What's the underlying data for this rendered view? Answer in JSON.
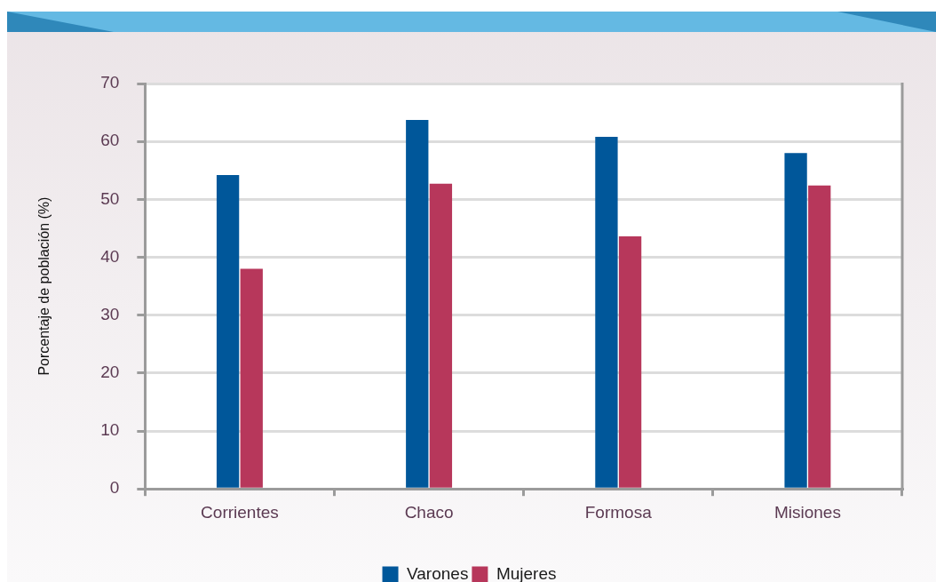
{
  "chart_data": {
    "type": "bar",
    "categories": [
      "Corrientes",
      "Chaco",
      "Formosa",
      "Misiones"
    ],
    "series": [
      {
        "name": "Varones",
        "color": "#00579a",
        "values": [
          54.2,
          63.7,
          60.8,
          58.0
        ]
      },
      {
        "name": "Mujeres",
        "color": "#b7375b",
        "values": [
          38.0,
          52.7,
          43.6,
          52.4
        ]
      }
    ],
    "ylabel": "Porcentaje de población (%)",
    "ylim": [
      0,
      70
    ],
    "yticks": [
      0,
      10,
      20,
      30,
      40,
      50,
      60,
      70
    ],
    "grid": "y",
    "legend": "bottom"
  }
}
